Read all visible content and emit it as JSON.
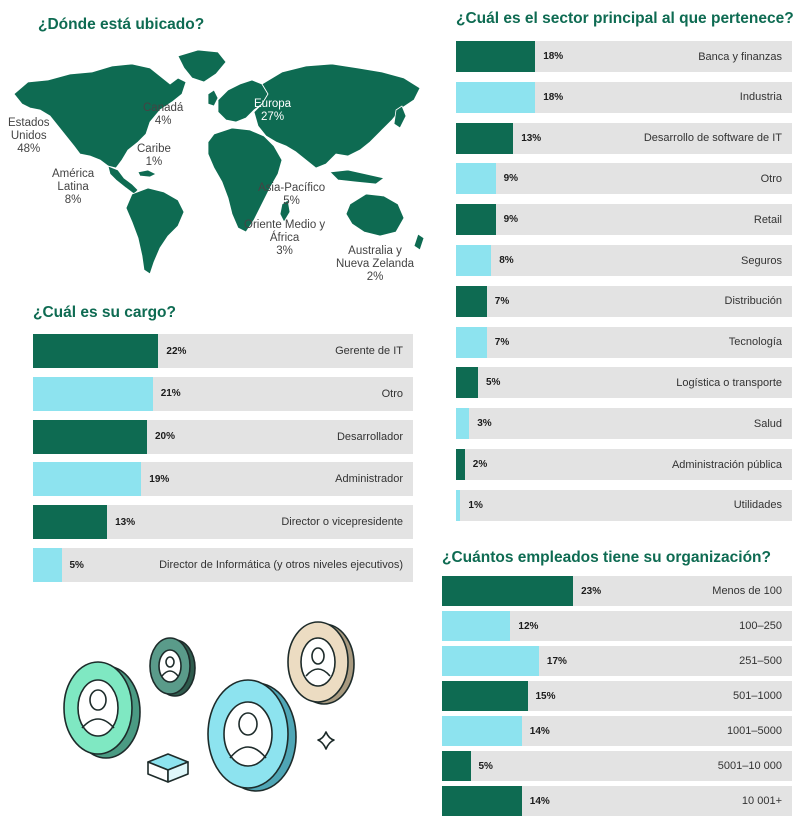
{
  "colors": {
    "dark": "#0e6b52",
    "light": "#8de3ef",
    "track": "#e3e3e3",
    "title": "#0e6b52"
  },
  "location": {
    "title": "¿Dónde está ubicado?",
    "regions": [
      {
        "lines": [
          "Estados",
          "Unidos"
        ],
        "value": "48%"
      },
      {
        "lines": [
          "Canadá"
        ],
        "value": "4%"
      },
      {
        "lines": [
          "Caribe"
        ],
        "value": "1%"
      },
      {
        "lines": [
          "América",
          "Latina"
        ],
        "value": "8%"
      },
      {
        "lines": [
          "Europa"
        ],
        "value": "27%"
      },
      {
        "lines": [
          "Asia-Pacífico"
        ],
        "value": "5%"
      },
      {
        "lines": [
          "Oriente Medio y",
          "África"
        ],
        "value": "3%"
      },
      {
        "lines": [
          "Australia y",
          "Nueva Zelanda"
        ],
        "value": "2%"
      }
    ]
  },
  "chart_data": [
    {
      "type": "bar",
      "title": "¿Cuál es el sector principal al que pertenece?",
      "categories": [
        "Banca y finanzas",
        "Industria",
        "Desarrollo de software de IT",
        "Otro",
        "Retail",
        "Seguros",
        "Distribución",
        "Tecnología",
        "Logística o transporte",
        "Salud",
        "Administración pública",
        "Utilidades"
      ],
      "values": [
        18,
        18,
        13,
        9,
        9,
        8,
        7,
        7,
        5,
        3,
        2,
        1
      ],
      "labels": [
        "18%",
        "18%",
        "13%",
        "9%",
        "9%",
        "8%",
        "7%",
        "7%",
        "5%",
        "3%",
        "2%",
        "1%"
      ],
      "colors": [
        "dark",
        "light",
        "dark",
        "light",
        "dark",
        "light",
        "dark",
        "light",
        "dark",
        "light",
        "dark",
        "light"
      ]
    },
    {
      "type": "bar",
      "title": "¿Cuál es su cargo?",
      "categories": [
        "Gerente de IT",
        "Otro",
        "Desarrollador",
        "Administrador",
        "Director o vicepresidente",
        "Director de Informática (y otros niveles ejecutivos)"
      ],
      "values": [
        22,
        21,
        20,
        19,
        13,
        5
      ],
      "labels": [
        "22%",
        "21%",
        "20%",
        "19%",
        "13%",
        "5%"
      ],
      "colors": [
        "dark",
        "light",
        "dark",
        "light",
        "dark",
        "light"
      ]
    },
    {
      "type": "bar",
      "title": "¿Cuántos empleados tiene su organización?",
      "categories": [
        "Menos de 100",
        "100–250",
        "251–500",
        "501–1000",
        "1001–5000",
        "5001–10 000",
        "10 001+"
      ],
      "values": [
        23,
        12,
        17,
        15,
        14,
        5,
        14
      ],
      "labels": [
        "23%",
        "12%",
        "17%",
        "15%",
        "14%",
        "5%",
        "14%"
      ],
      "colors": [
        "dark",
        "light",
        "light",
        "dark",
        "light",
        "dark",
        "dark"
      ]
    }
  ]
}
